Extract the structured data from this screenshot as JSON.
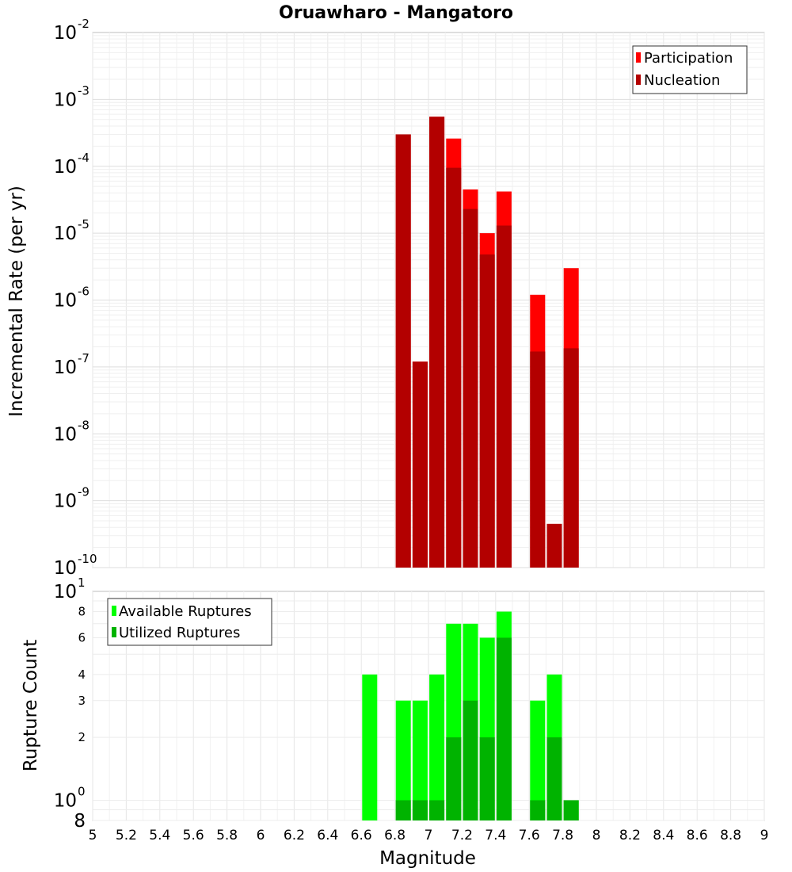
{
  "chart_data": [
    {
      "id": "rates",
      "type": "bar",
      "title": "Oruawharo - Mangatoro",
      "xlabel": "",
      "ylabel": "Incremental Rate (per yr)",
      "yscale": "log",
      "xlim": [
        5,
        9
      ],
      "ylim": [
        1e-10,
        0.01
      ],
      "y_major_ticks": [
        {
          "base": "10",
          "exp": "-10",
          "value": 1e-10
        },
        {
          "base": "10",
          "exp": "-9",
          "value": 1e-09
        },
        {
          "base": "10",
          "exp": "-8",
          "value": 1e-08
        },
        {
          "base": "10",
          "exp": "-7",
          "value": 1e-07
        },
        {
          "base": "10",
          "exp": "-6",
          "value": 1e-06
        },
        {
          "base": "10",
          "exp": "-5",
          "value": 1e-05
        },
        {
          "base": "10",
          "exp": "-4",
          "value": 0.0001
        },
        {
          "base": "10",
          "exp": "-3",
          "value": 0.001
        },
        {
          "base": "10",
          "exp": "-2",
          "value": 0.01
        }
      ],
      "grid": true,
      "legend_position": "top-right",
      "x": [
        6.85,
        6.95,
        7.05,
        7.15,
        7.25,
        7.35,
        7.45,
        7.55,
        7.65,
        7.75,
        7.85
      ],
      "series": [
        {
          "name": "Participation",
          "color": "#ff0000",
          "values": [
            0.0003,
            1.2e-07,
            0.00055,
            0.00026,
            4.5e-05,
            1e-05,
            4.2e-05,
            null,
            1.2e-06,
            4.5e-10,
            3e-06
          ]
        },
        {
          "name": "Nucleation",
          "color": "#b30000",
          "values": [
            0.0003,
            1.2e-07,
            0.00055,
            9.5e-05,
            2.3e-05,
            4.8e-06,
            1.3e-05,
            null,
            1.7e-07,
            4.5e-10,
            1.9e-07
          ]
        }
      ]
    },
    {
      "id": "counts",
      "type": "bar",
      "xlabel": "Magnitude",
      "ylabel": "Rupture Count",
      "yscale": "log",
      "xlim": [
        5,
        9
      ],
      "ylim": [
        0.8,
        10
      ],
      "x_ticks": [
        "5",
        "5.2",
        "5.4",
        "5.6",
        "5.8",
        "6",
        "6.2",
        "6.4",
        "6.6",
        "6.8",
        "7",
        "7.2",
        "7.4",
        "7.6",
        "7.8",
        "8",
        "8.2",
        "8.4",
        "8.6",
        "8.8",
        "9"
      ],
      "y_major_ticks": [
        {
          "base": "10",
          "exp": "0",
          "value": 1
        },
        {
          "base": "10",
          "exp": "1",
          "value": 10
        }
      ],
      "y_minor_ticks": [
        {
          "label": "8",
          "value": 0.8
        },
        {
          "label": "2",
          "value": 2
        },
        {
          "label": "3",
          "value": 3
        },
        {
          "label": "4",
          "value": 4
        },
        {
          "label": "6",
          "value": 6
        },
        {
          "label": "8",
          "value": 8
        }
      ],
      "grid": true,
      "legend_position": "top-left",
      "x": [
        6.65,
        6.75,
        6.85,
        6.95,
        7.05,
        7.15,
        7.25,
        7.35,
        7.45,
        7.55,
        7.65,
        7.75,
        7.85
      ],
      "series": [
        {
          "name": "Available Ruptures",
          "color": "#00ff00",
          "values": [
            4,
            null,
            3,
            3,
            4,
            7,
            7,
            6,
            8,
            null,
            3,
            4,
            1
          ]
        },
        {
          "name": "Utilized Ruptures",
          "color": "#00b300",
          "values": [
            null,
            null,
            1,
            1,
            1,
            2,
            3,
            2,
            6,
            null,
            1,
            2,
            1
          ]
        }
      ]
    }
  ]
}
